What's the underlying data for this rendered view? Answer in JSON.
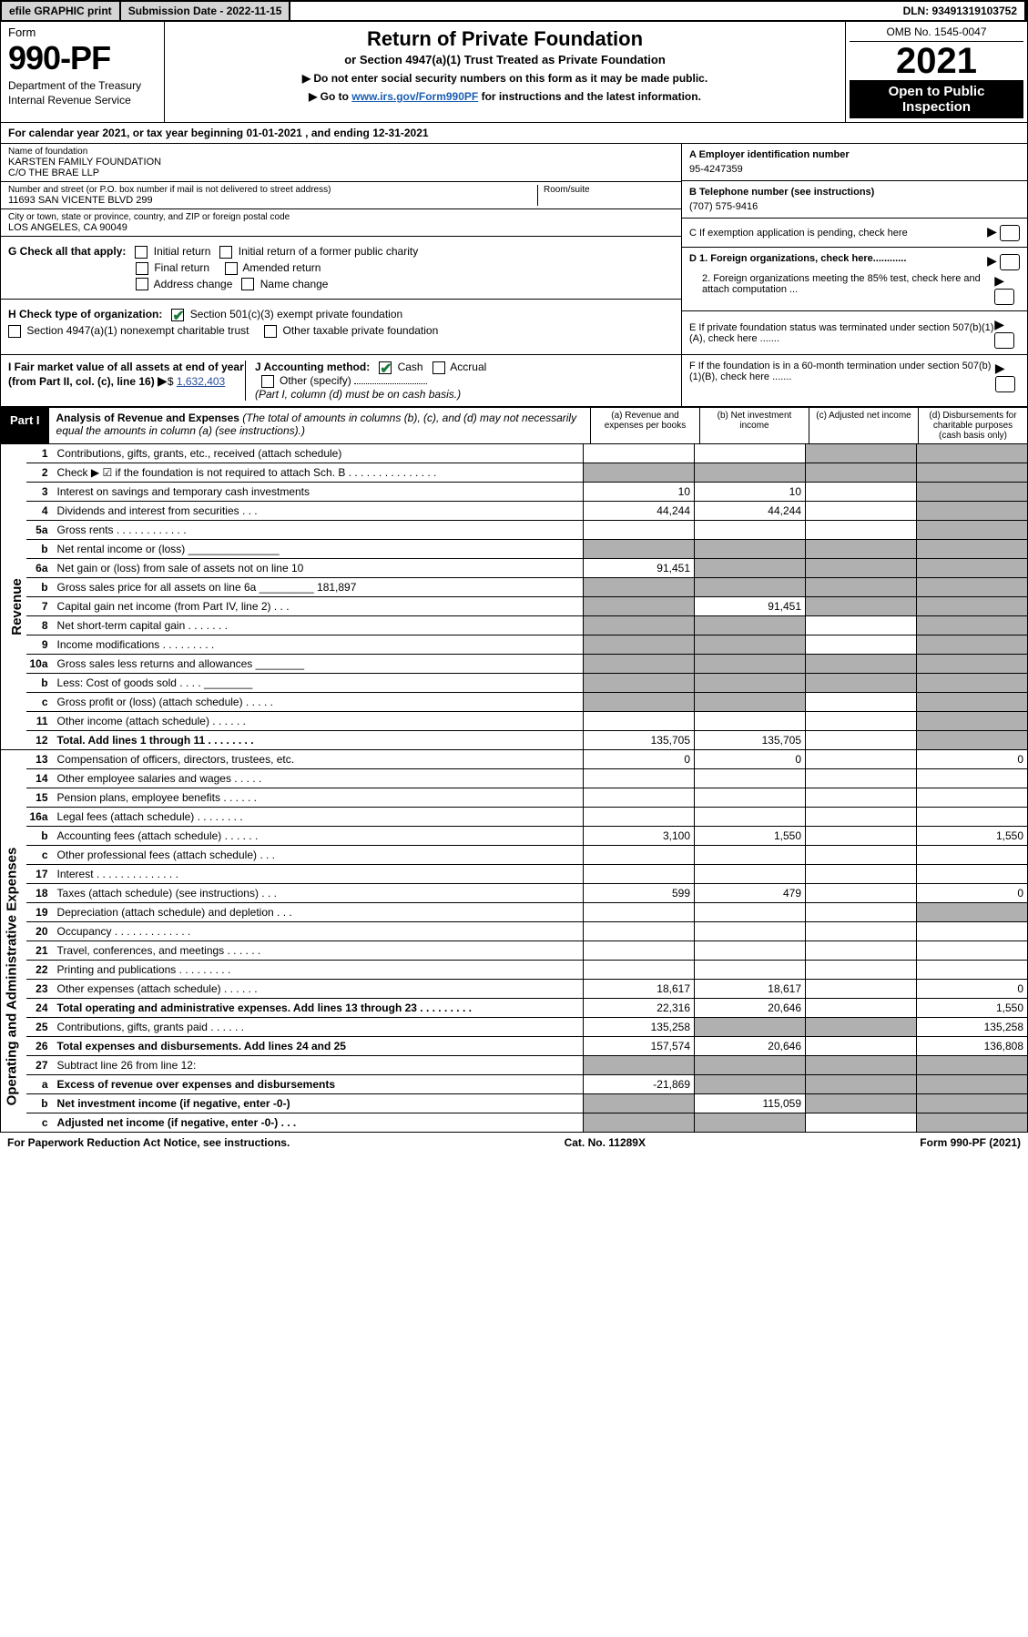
{
  "topbar": {
    "efile": "efile GRAPHIC print",
    "sub_label": "Submission Date - 2022-11-15",
    "dln": "DLN: 93491319103752"
  },
  "header": {
    "form_label": "Form",
    "form_no": "990-PF",
    "dept": "Department of the Treasury",
    "irs": "Internal Revenue Service",
    "title": "Return of Private Foundation",
    "subtitle": "or Section 4947(a)(1) Trust Treated as Private Foundation",
    "note1": "▶ Do not enter social security numbers on this form as it may be made public.",
    "note2_pre": "▶ Go to ",
    "note2_link": "www.irs.gov/Form990PF",
    "note2_post": " for instructions and the latest information.",
    "omb": "OMB No. 1545-0047",
    "year": "2021",
    "open": "Open to Public Inspection"
  },
  "calendar": {
    "text_pre": "For calendar year 2021, or tax year beginning ",
    "begin": "01-01-2021",
    "mid": " , and ending ",
    "end": "12-31-2021"
  },
  "foundation": {
    "name_label": "Name of foundation",
    "name": "KARSTEN FAMILY FOUNDATION",
    "co": "C/O THE BRAE LLP",
    "addr_label": "Number and street (or P.O. box number if mail is not delivered to street address)",
    "addr": "11693 SAN VICENTE BLVD 299",
    "room_label": "Room/suite",
    "city_label": "City or town, state or province, country, and ZIP or foreign postal code",
    "city": "LOS ANGELES, CA  90049"
  },
  "right": {
    "a_label": "A Employer identification number",
    "a_val": "95-4247359",
    "b_label": "B Telephone number (see instructions)",
    "b_val": "(707) 575-9416",
    "c_label": "C If exemption application is pending, check here",
    "d1": "D 1. Foreign organizations, check here............",
    "d2": "2. Foreign organizations meeting the 85% test, check here and attach computation ...",
    "e": "E  If private foundation status was terminated under section 507(b)(1)(A), check here .......",
    "f": "F  If the foundation is in a 60-month termination under section 507(b)(1)(B), check here ......."
  },
  "checks": {
    "g_label": "G Check all that apply:",
    "g_opts": [
      "Initial return",
      "Initial return of a former public charity",
      "Final return",
      "Amended return",
      "Address change",
      "Name change"
    ],
    "h_label": "H Check type of organization:",
    "h1": "Section 501(c)(3) exempt private foundation",
    "h2": "Section 4947(a)(1) nonexempt charitable trust",
    "h3": "Other taxable private foundation",
    "i_label": "I Fair market value of all assets at end of year (from Part II, col. (c), line 16)",
    "i_val": "1,632,403",
    "j_label": "J Accounting method:",
    "j_cash": "Cash",
    "j_accrual": "Accrual",
    "j_other": "Other (specify)",
    "j_note": "(Part I, column (d) must be on cash basis.)"
  },
  "part1": {
    "tab": "Part I",
    "title": "Analysis of Revenue and Expenses",
    "desc": " (The total of amounts in columns (b), (c), and (d) may not necessarily equal the amounts in column (a) (see instructions).)",
    "col_a": "(a)   Revenue and expenses per books",
    "col_b": "(b)   Net investment income",
    "col_c": "(c)   Adjusted net income",
    "col_d": "(d)   Disbursements for charitable purposes (cash basis only)"
  },
  "rows": [
    {
      "n": "1",
      "lbl": "Contributions, gifts, grants, etc., received (attach schedule)",
      "a": "",
      "b": "",
      "c": "g",
      "d": "g"
    },
    {
      "n": "2",
      "lbl": "Check ▶ ☑ if the foundation is not required to attach Sch. B   .   .   .   .   .   .   .   .   .   .   .   .   .   .   .",
      "a": "g",
      "b": "g",
      "c": "g",
      "d": "g"
    },
    {
      "n": "3",
      "lbl": "Interest on savings and temporary cash investments",
      "a": "10",
      "b": "10",
      "c": "",
      "d": "g"
    },
    {
      "n": "4",
      "lbl": "Dividends and interest from securities    .    .    .",
      "a": "44,244",
      "b": "44,244",
      "c": "",
      "d": "g"
    },
    {
      "n": "5a",
      "lbl": "Gross rents    .   .   .   .   .   .   .   .   .   .   .   .",
      "a": "",
      "b": "",
      "c": "",
      "d": "g"
    },
    {
      "n": "b",
      "lbl": "Net rental income or (loss)  _______________",
      "a": "g",
      "b": "g",
      "c": "g",
      "d": "g"
    },
    {
      "n": "6a",
      "lbl": "Net gain or (loss) from sale of assets not on line 10",
      "a": "91,451",
      "b": "g",
      "c": "g",
      "d": "g"
    },
    {
      "n": "b",
      "lbl": "Gross sales price for all assets on line 6a _________ 181,897",
      "a": "g",
      "b": "g",
      "c": "g",
      "d": "g"
    },
    {
      "n": "7",
      "lbl": "Capital gain net income (from Part IV, line 2)  .   .   .",
      "a": "g",
      "b": "91,451",
      "c": "g",
      "d": "g"
    },
    {
      "n": "8",
      "lbl": "Net short-term capital gain  .   .   .   .   .   .   .",
      "a": "g",
      "b": "g",
      "c": "",
      "d": "g"
    },
    {
      "n": "9",
      "lbl": "Income modifications  .   .   .   .   .   .   .   .   .",
      "a": "g",
      "b": "g",
      "c": "",
      "d": "g"
    },
    {
      "n": "10a",
      "lbl": "Gross sales less returns and allowances  ________",
      "a": "g",
      "b": "g",
      "c": "g",
      "d": "g"
    },
    {
      "n": "b",
      "lbl": "Less: Cost of goods sold   .   .   .   .   ________",
      "a": "g",
      "b": "g",
      "c": "g",
      "d": "g"
    },
    {
      "n": "c",
      "lbl": "Gross profit or (loss) (attach schedule)   .   .   .   .   .",
      "a": "g",
      "b": "g",
      "c": "",
      "d": "g"
    },
    {
      "n": "11",
      "lbl": "Other income (attach schedule)   .   .   .   .   .   .",
      "a": "",
      "b": "",
      "c": "",
      "d": "g"
    },
    {
      "n": "12",
      "lbl": "Total. Add lines 1 through 11  .   .   .   .   .   .   .   .",
      "a": "135,705",
      "b": "135,705",
      "c": "",
      "d": "g",
      "bold": true
    },
    {
      "n": "13",
      "lbl": "Compensation of officers, directors, trustees, etc.",
      "a": "0",
      "b": "0",
      "c": "",
      "d": "0"
    },
    {
      "n": "14",
      "lbl": "Other employee salaries and wages   .   .   .   .   .",
      "a": "",
      "b": "",
      "c": "",
      "d": ""
    },
    {
      "n": "15",
      "lbl": "Pension plans, employee benefits  .   .   .   .   .   .",
      "a": "",
      "b": "",
      "c": "",
      "d": ""
    },
    {
      "n": "16a",
      "lbl": "Legal fees (attach schedule)  .   .   .   .   .   .   .   .",
      "a": "",
      "b": "",
      "c": "",
      "d": ""
    },
    {
      "n": "b",
      "lbl": "Accounting fees (attach schedule)  .   .   .   .   .   .",
      "a": "3,100",
      "b": "1,550",
      "c": "",
      "d": "1,550"
    },
    {
      "n": "c",
      "lbl": "Other professional fees (attach schedule)   .   .   .",
      "a": "",
      "b": "",
      "c": "",
      "d": ""
    },
    {
      "n": "17",
      "lbl": "Interest  .   .   .   .   .   .   .   .   .   .   .   .   .   .",
      "a": "",
      "b": "",
      "c": "",
      "d": ""
    },
    {
      "n": "18",
      "lbl": "Taxes (attach schedule) (see instructions)    .   .   .",
      "a": "599",
      "b": "479",
      "c": "",
      "d": "0"
    },
    {
      "n": "19",
      "lbl": "Depreciation (attach schedule) and depletion   .   .   .",
      "a": "",
      "b": "",
      "c": "",
      "d": "g"
    },
    {
      "n": "20",
      "lbl": "Occupancy  .   .   .   .   .   .   .   .   .   .   .   .   .",
      "a": "",
      "b": "",
      "c": "",
      "d": ""
    },
    {
      "n": "21",
      "lbl": "Travel, conferences, and meetings  .   .   .   .   .   .",
      "a": "",
      "b": "",
      "c": "",
      "d": ""
    },
    {
      "n": "22",
      "lbl": "Printing and publications  .   .   .   .   .   .   .   .   .",
      "a": "",
      "b": "",
      "c": "",
      "d": ""
    },
    {
      "n": "23",
      "lbl": "Other expenses (attach schedule)  .   .   .   .   .   .",
      "a": "18,617",
      "b": "18,617",
      "c": "",
      "d": "0"
    },
    {
      "n": "24",
      "lbl": "Total operating and administrative expenses. Add lines 13 through 23   .   .   .   .   .   .   .   .   .",
      "a": "22,316",
      "b": "20,646",
      "c": "",
      "d": "1,550",
      "bold": true
    },
    {
      "n": "25",
      "lbl": "Contributions, gifts, grants paid    .   .   .   .   .   .",
      "a": "135,258",
      "b": "g",
      "c": "g",
      "d": "135,258"
    },
    {
      "n": "26",
      "lbl": "Total expenses and disbursements. Add lines 24 and 25",
      "a": "157,574",
      "b": "20,646",
      "c": "",
      "d": "136,808",
      "bold": true
    },
    {
      "n": "27",
      "lbl": "Subtract line 26 from line 12:",
      "a": "g",
      "b": "g",
      "c": "g",
      "d": "g"
    },
    {
      "n": "a",
      "lbl": "Excess of revenue over expenses and disbursements",
      "a": "-21,869",
      "b": "g",
      "c": "g",
      "d": "g",
      "bold": true
    },
    {
      "n": "b",
      "lbl": "Net investment income (if negative, enter -0-)",
      "a": "g",
      "b": "115,059",
      "c": "g",
      "d": "g",
      "bold": true
    },
    {
      "n": "c",
      "lbl": "Adjusted net income (if negative, enter -0-)   .   .   .",
      "a": "g",
      "b": "g",
      "c": "",
      "d": "g",
      "bold": true
    }
  ],
  "sidelabels": {
    "rev": "Revenue",
    "exp": "Operating and Administrative Expenses"
  },
  "footer": {
    "left": "For Paperwork Reduction Act Notice, see instructions.",
    "mid": "Cat. No. 11289X",
    "right": "Form 990-PF (2021)"
  }
}
